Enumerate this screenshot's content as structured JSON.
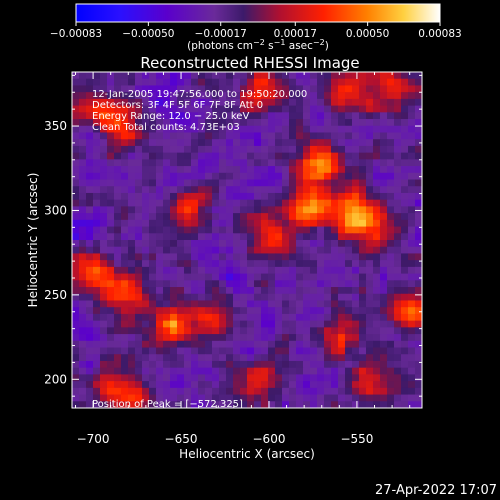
{
  "chart_data": {
    "type": "heatmap",
    "title": "Reconstructed RHESSI Image",
    "xlabel": "Heliocentric X (arcsec)",
    "ylabel": "Heliocentric Y (arcsec)",
    "xlim": [
      -712,
      -513
    ],
    "ylim": [
      183,
      382
    ],
    "x_ticks": [
      -700,
      -650,
      -600,
      -550
    ],
    "x_tick_labels": [
      "−700",
      "−650",
      "−600",
      "−550"
    ],
    "y_ticks": [
      200,
      250,
      300,
      350
    ],
    "y_tick_labels": [
      "200",
      "250",
      "300",
      "350"
    ],
    "colorbar": {
      "range": [
        -0.00083,
        0.00083
      ],
      "ticks": [
        -0.00083,
        -0.0005,
        -0.00017,
        0.00017,
        0.0005,
        0.00083
      ],
      "tick_labels": [
        "−0.00083",
        "−0.00050",
        "−0.00017",
        "0.00017",
        "0.00050",
        "0.00083"
      ],
      "units_text": "(photons cm",
      "units_sup1": "−2",
      "units_mid1": " s",
      "units_sup2": "−1",
      "units_mid2": " asec",
      "units_sup3": "−2",
      "units_end": ")",
      "colormap": [
        "#0000ff",
        "#5a00cc",
        "#6a2a9a",
        "#3c1a6a",
        "#b01030",
        "#ff2000",
        "#ff8000",
        "#ffd040",
        "#ffffff"
      ]
    },
    "annotations": [
      "12-Jan-2005 19:47:56.000 to 19:50:20.000",
      "Detectors: 3F 4F 5F 6F 7F 8F  Att 0",
      "Energy Range: 12.0 − 25.0 keV",
      "Clean     Total counts: 4.73E+03"
    ],
    "peak_label": "Position of Peak = [−572,325]",
    "bright_sources": [
      {
        "x": -572,
        "y": 325,
        "value": 0.00083
      },
      {
        "x": -578,
        "y": 300,
        "value": 0.0007
      },
      {
        "x": -552,
        "y": 300,
        "value": 0.00062
      },
      {
        "x": -545,
        "y": 290,
        "value": 0.0006
      },
      {
        "x": -600,
        "y": 282,
        "value": 0.00052
      },
      {
        "x": -645,
        "y": 300,
        "value": 0.0005
      },
      {
        "x": -680,
        "y": 250,
        "value": 0.0006
      },
      {
        "x": -700,
        "y": 262,
        "value": 0.00055
      },
      {
        "x": -655,
        "y": 230,
        "value": 0.0006
      },
      {
        "x": -630,
        "y": 240,
        "value": 0.00045
      },
      {
        "x": -683,
        "y": 192,
        "value": 0.00055
      },
      {
        "x": -700,
        "y": 360,
        "value": 0.00045
      },
      {
        "x": -680,
        "y": 350,
        "value": 0.0005
      },
      {
        "x": -605,
        "y": 372,
        "value": 0.00045
      },
      {
        "x": -555,
        "y": 370,
        "value": 0.0005
      },
      {
        "x": -530,
        "y": 372,
        "value": 0.00045
      },
      {
        "x": -560,
        "y": 225,
        "value": 0.00048
      },
      {
        "x": -520,
        "y": 240,
        "value": 0.0005
      },
      {
        "x": -540,
        "y": 200,
        "value": 0.0004
      },
      {
        "x": -605,
        "y": 200,
        "value": 0.00035
      }
    ]
  },
  "footer": {
    "timestamp": "27-Apr-2022 17:07"
  }
}
